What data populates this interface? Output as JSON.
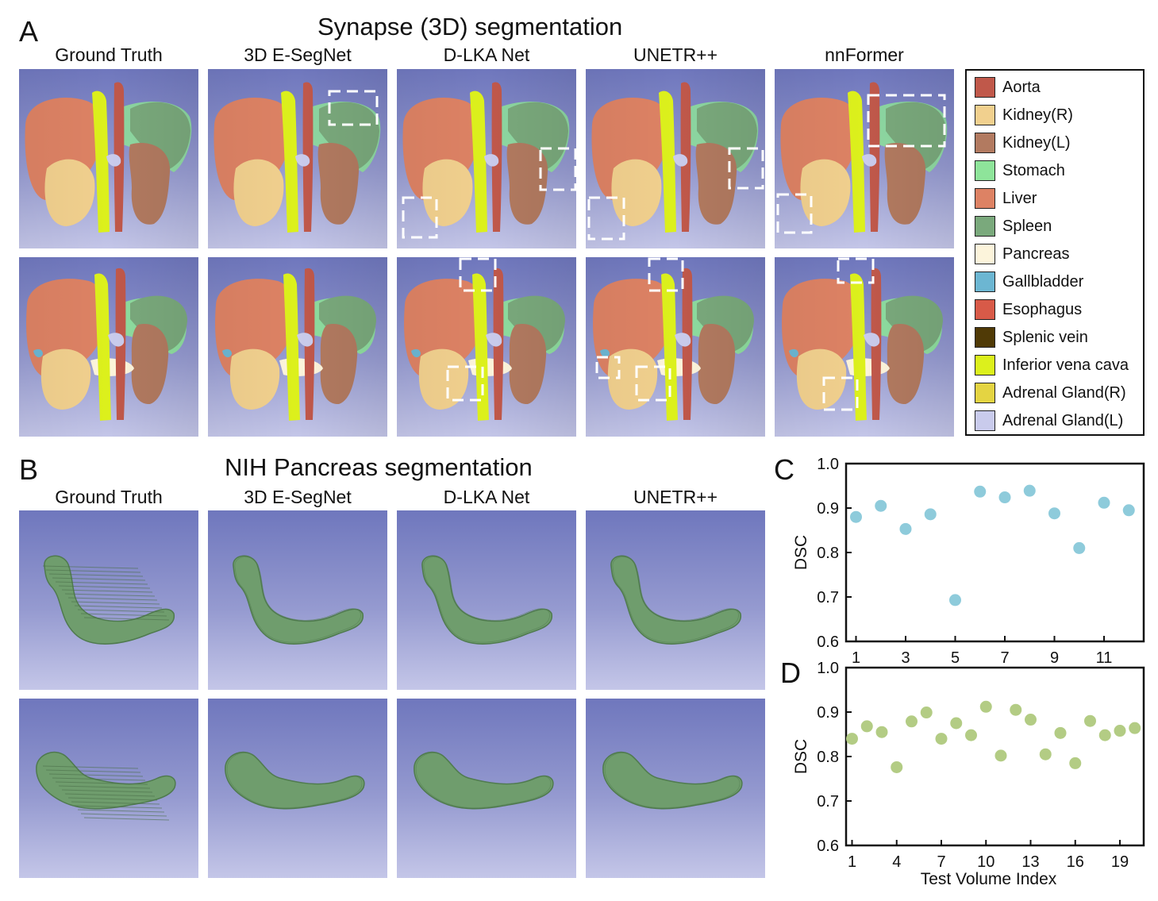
{
  "panel_a": {
    "letter": "A",
    "title": "Synapse (3D) segmentation",
    "columns": [
      "Ground Truth",
      "3D E-SegNet",
      "D-LKA Net",
      "UNETR++",
      "nnFormer"
    ]
  },
  "panel_b": {
    "letter": "B",
    "title": "NIH Pancreas segmentation",
    "columns": [
      "Ground Truth",
      "3D E-SegNet",
      "D-LKA Net",
      "UNETR++"
    ]
  },
  "legend": {
    "items": [
      {
        "label": "Aorta",
        "color": "#c0584a"
      },
      {
        "label": "Kidney(R)",
        "color": "#f1d08e"
      },
      {
        "label": "Kidney(L)",
        "color": "#b27a60"
      },
      {
        "label": "Stomach",
        "color": "#8ee49a"
      },
      {
        "label": "Liver",
        "color": "#dd8264"
      },
      {
        "label": "Spleen",
        "color": "#7aa97c"
      },
      {
        "label": "Pancreas",
        "color": "#fcf4db"
      },
      {
        "label": "Gallbladder",
        "color": "#6cb6d2"
      },
      {
        "label": "Esophagus",
        "color": "#d85a48"
      },
      {
        "label": "Splenic vein",
        "color": "#503a06"
      },
      {
        "label": "Inferior vena cava",
        "color": "#dcf01c"
      },
      {
        "label": "Adrenal Gland(R)",
        "color": "#e4d442"
      },
      {
        "label": "Adrenal Gland(L)",
        "color": "#c9cbec"
      }
    ]
  },
  "panel_c": {
    "letter": "C"
  },
  "panel_d": {
    "letter": "D"
  },
  "chart_data": [
    {
      "type": "scatter",
      "panel": "C",
      "title": "",
      "xlabel": "",
      "ylabel": "DSC",
      "x": [
        1,
        2,
        3,
        4,
        5,
        6,
        7,
        8,
        9,
        10,
        11,
        12
      ],
      "y": [
        0.88,
        0.905,
        0.853,
        0.886,
        0.693,
        0.937,
        0.924,
        0.939,
        0.888,
        0.81,
        0.912,
        0.895
      ],
      "xlim": [
        0.6,
        12.6
      ],
      "ylim": [
        0.6,
        1.0
      ],
      "xticks": [
        1,
        3,
        5,
        7,
        9,
        11
      ],
      "yticks": [
        0.6,
        0.7,
        0.8,
        0.9,
        1.0
      ],
      "ytick_labels": [
        "0.6",
        "0.7",
        "0.8",
        "0.9",
        "1.0"
      ],
      "color": "#8ecbdb",
      "grid": false
    },
    {
      "type": "scatter",
      "panel": "D",
      "title": "",
      "xlabel": "Test Volume Index",
      "ylabel": "DSC",
      "x": [
        1,
        2,
        3,
        4,
        5,
        6,
        7,
        8,
        9,
        10,
        11,
        12,
        13,
        14,
        15,
        16,
        17,
        18,
        19,
        20
      ],
      "y": [
        0.84,
        0.868,
        0.855,
        0.776,
        0.879,
        0.899,
        0.84,
        0.875,
        0.848,
        0.912,
        0.802,
        0.905,
        0.883,
        0.805,
        0.853,
        0.785,
        0.88,
        0.848,
        0.858,
        0.864
      ],
      "xlim": [
        0.6,
        20.6
      ],
      "ylim": [
        0.6,
        1.0
      ],
      "xticks": [
        1,
        4,
        7,
        10,
        13,
        16,
        19
      ],
      "yticks": [
        0.6,
        0.7,
        0.8,
        0.9,
        1.0
      ],
      "ytick_labels": [
        "0.6",
        "0.7",
        "0.8",
        "0.9",
        "1.0"
      ],
      "color": "#b3cc84",
      "grid": false
    }
  ]
}
